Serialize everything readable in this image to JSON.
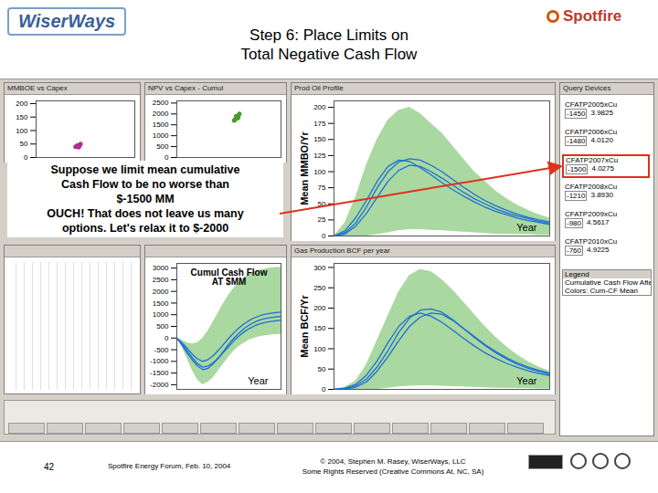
{
  "slide": {
    "logo_left": "WiserWays",
    "logo_right": "Spotfire",
    "title": [
      "Step 6: Place Limits on",
      "Total Negative Cash Flow"
    ],
    "callout": [
      "Suppose we limit mean cumulative",
      "Cash Flow to be no worse than",
      "$-1500 MM",
      "OUCH!  That does not leave us many",
      "options.  Let's relax it to $-2000"
    ],
    "query_title": "Query Devices",
    "query_items": [
      {
        "label": "CFATP2005xCu",
        "lo": "-1450",
        "hi": "3.9825"
      },
      {
        "label": "CFATP2006xCu",
        "lo": "-1480",
        "hi": "4.0120"
      },
      {
        "label": "CFATP2007xCu",
        "lo": "-1500",
        "hi": "4.0275",
        "highlight": true
      },
      {
        "label": "CFATP2008xCu",
        "lo": "-1210",
        "hi": "3.8930"
      },
      {
        "label": "CFATP2009xCu",
        "lo": "-980",
        "hi": "4.5617"
      },
      {
        "label": "CFATP2010xCu",
        "lo": "-760",
        "hi": "4.9225"
      }
    ],
    "legend_title": "Legend",
    "legend_lines": [
      "Cumulative Cash Flow After",
      "Colors: Cum-CF Mean"
    ],
    "page": "42",
    "event": "Spotfire Energy Forum, Feb. 10, 2004",
    "copyright": [
      "© 2004, Stephen M. Rasey, WiserWays, LLC",
      "Some Rights Reserved (Creative Commons At, NC, SA)"
    ]
  },
  "chart_data": [
    {
      "type": "scatter",
      "title": "MMBOE vs Capex",
      "tick_labels": "y",
      "xlim": [
        0,
        100
      ],
      "ylim": [
        0,
        210
      ],
      "yticks": [
        0,
        50,
        100,
        150,
        200
      ],
      "series": [
        {
          "color": "#b0308a",
          "marker": "dot",
          "x": [
            40,
            42,
            43,
            45,
            44
          ],
          "values": [
            40,
            45,
            38,
            50,
            43
          ]
        }
      ]
    },
    {
      "type": "scatter",
      "title": "NPV vs Capex - Cumul",
      "tick_labels": "y",
      "xlim": [
        0,
        100
      ],
      "ylim": [
        0,
        2600
      ],
      "yticks": [
        0,
        500,
        1000,
        1500,
        2000,
        2500
      ],
      "series": [
        {
          "color": "#4a9a2a",
          "marker": "dot",
          "x": [
            55,
            57,
            58,
            60,
            59,
            56
          ],
          "values": [
            1700,
            1900,
            1800,
            2000,
            1850,
            1750
          ]
        }
      ]
    },
    {
      "type": "line",
      "title": "Prod Oil Profile",
      "ylabel": "Mean MMBO/Yr",
      "xlabel": "Year",
      "tick_labels": "y",
      "x": [
        0,
        1,
        2,
        3,
        4,
        5,
        6,
        7,
        8,
        9,
        10,
        11,
        12,
        13,
        14,
        15,
        16,
        17,
        18,
        19,
        20
      ],
      "xlim": [
        0,
        20
      ],
      "ylim": [
        0,
        210
      ],
      "yticks": [
        0,
        25,
        50,
        75,
        100,
        125,
        150,
        175,
        200
      ],
      "series": [
        {
          "type": "area",
          "color": "#a9d8a0",
          "low": [
            0,
            0,
            0,
            0,
            2,
            5,
            8,
            10,
            10,
            9,
            8,
            7,
            6,
            5,
            4,
            3,
            3,
            2,
            2,
            1,
            1
          ],
          "high": [
            0,
            20,
            60,
            110,
            150,
            180,
            195,
            200,
            190,
            175,
            160,
            140,
            120,
            100,
            85,
            70,
            58,
            48,
            40,
            33,
            28
          ]
        },
        {
          "type": "line",
          "color": "#1f6fd6",
          "values": [
            0,
            5,
            20,
            45,
            75,
            100,
            115,
            120,
            118,
            110,
            100,
            88,
            76,
            65,
            55,
            47,
            40,
            34,
            29,
            25,
            22
          ]
        },
        {
          "type": "line",
          "color": "#1f6fd6",
          "values": [
            0,
            3,
            15,
            35,
            60,
            85,
            102,
            110,
            108,
            100,
            90,
            79,
            68,
            58,
            50,
            42,
            36,
            31,
            27,
            23,
            20
          ]
        },
        {
          "type": "line",
          "color": "#1f6fd6",
          "values": [
            0,
            8,
            28,
            55,
            85,
            108,
            118,
            116,
            106,
            95,
            83,
            72,
            62,
            53,
            45,
            38,
            33,
            28,
            24,
            21,
            18
          ]
        }
      ]
    },
    {
      "type": "line",
      "annotation": "Cumul Cash Flow\nAT $MM",
      "xlabel": "Year",
      "tick_labels": "y",
      "x": [
        0,
        1,
        2,
        3,
        4,
        5,
        6,
        7,
        8,
        9,
        10,
        11,
        12,
        13,
        14,
        15,
        16,
        17,
        18,
        19,
        20
      ],
      "xlim": [
        0,
        20
      ],
      "ylim": [
        -2200,
        3200
      ],
      "yticks": [
        -2000,
        -1500,
        -1000,
        -500,
        0,
        500,
        1000,
        1500,
        2000,
        2500,
        3000
      ],
      "series": [
        {
          "type": "area",
          "color": "#a9d8a0",
          "low": [
            0,
            -400,
            -900,
            -1400,
            -1800,
            -2000,
            -1900,
            -1700,
            -1400,
            -1100,
            -800,
            -550,
            -350,
            -200,
            -80,
            0,
            60,
            100,
            130,
            150,
            160
          ],
          "high": [
            0,
            -100,
            -200,
            -250,
            -200,
            0,
            300,
            700,
            1100,
            1500,
            1850,
            2150,
            2400,
            2600,
            2750,
            2850,
            2920,
            2970,
            3000,
            3020,
            3030
          ]
        },
        {
          "type": "line",
          "color": "#1f6fd6",
          "values": [
            0,
            -250,
            -550,
            -850,
            -1100,
            -1250,
            -1200,
            -1050,
            -850,
            -600,
            -350,
            -100,
            100,
            280,
            420,
            530,
            610,
            670,
            710,
            740,
            760
          ]
        },
        {
          "type": "line",
          "color": "#1f6fd6",
          "values": [
            0,
            -300,
            -650,
            -950,
            -1200,
            -1350,
            -1300,
            -1100,
            -850,
            -550,
            -250,
            0,
            230,
            420,
            570,
            690,
            780,
            840,
            880,
            910,
            930
          ]
        },
        {
          "type": "line",
          "color": "#1f6fd6",
          "values": [
            0,
            -200,
            -450,
            -700,
            -900,
            -1000,
            -920,
            -750,
            -520,
            -260,
            0,
            240,
            450,
            630,
            770,
            880,
            960,
            1020,
            1060,
            1090,
            1110
          ]
        }
      ]
    },
    {
      "type": "line",
      "title": "Gas Production BCF per year",
      "ylabel": "Mean BCF/Yr",
      "xlabel": "Year",
      "tick_labels": "y",
      "x": [
        0,
        1,
        2,
        3,
        4,
        5,
        6,
        7,
        8,
        9,
        10,
        11,
        12,
        13,
        14,
        15,
        16,
        17,
        18,
        19,
        20
      ],
      "xlim": [
        0,
        20
      ],
      "ylim": [
        0,
        310
      ],
      "yticks": [
        0,
        50,
        100,
        150,
        200,
        250,
        300
      ],
      "series": [
        {
          "type": "area",
          "color": "#a9d8a0",
          "low": [
            0,
            0,
            0,
            0,
            0,
            3,
            6,
            8,
            9,
            9,
            8,
            7,
            6,
            5,
            4,
            3,
            3,
            2,
            2,
            1,
            1
          ],
          "high": [
            0,
            5,
            20,
            60,
            120,
            180,
            240,
            280,
            295,
            290,
            270,
            245,
            215,
            185,
            155,
            128,
            105,
            85,
            68,
            55,
            45
          ]
        },
        {
          "type": "line",
          "color": "#1f6fd6",
          "values": [
            0,
            2,
            8,
            25,
            55,
            95,
            140,
            175,
            195,
            198,
            190,
            172,
            150,
            128,
            108,
            90,
            75,
            62,
            52,
            44,
            38
          ]
        },
        {
          "type": "line",
          "color": "#1f6fd6",
          "values": [
            0,
            1,
            5,
            18,
            45,
            80,
            120,
            155,
            178,
            188,
            185,
            170,
            150,
            130,
            110,
            93,
            78,
            65,
            55,
            47,
            40
          ]
        },
        {
          "type": "line",
          "color": "#1f6fd6",
          "values": [
            0,
            3,
            12,
            35,
            70,
            115,
            155,
            180,
            188,
            180,
            165,
            146,
            126,
            107,
            90,
            76,
            64,
            54,
            46,
            39,
            34
          ]
        }
      ]
    }
  ]
}
